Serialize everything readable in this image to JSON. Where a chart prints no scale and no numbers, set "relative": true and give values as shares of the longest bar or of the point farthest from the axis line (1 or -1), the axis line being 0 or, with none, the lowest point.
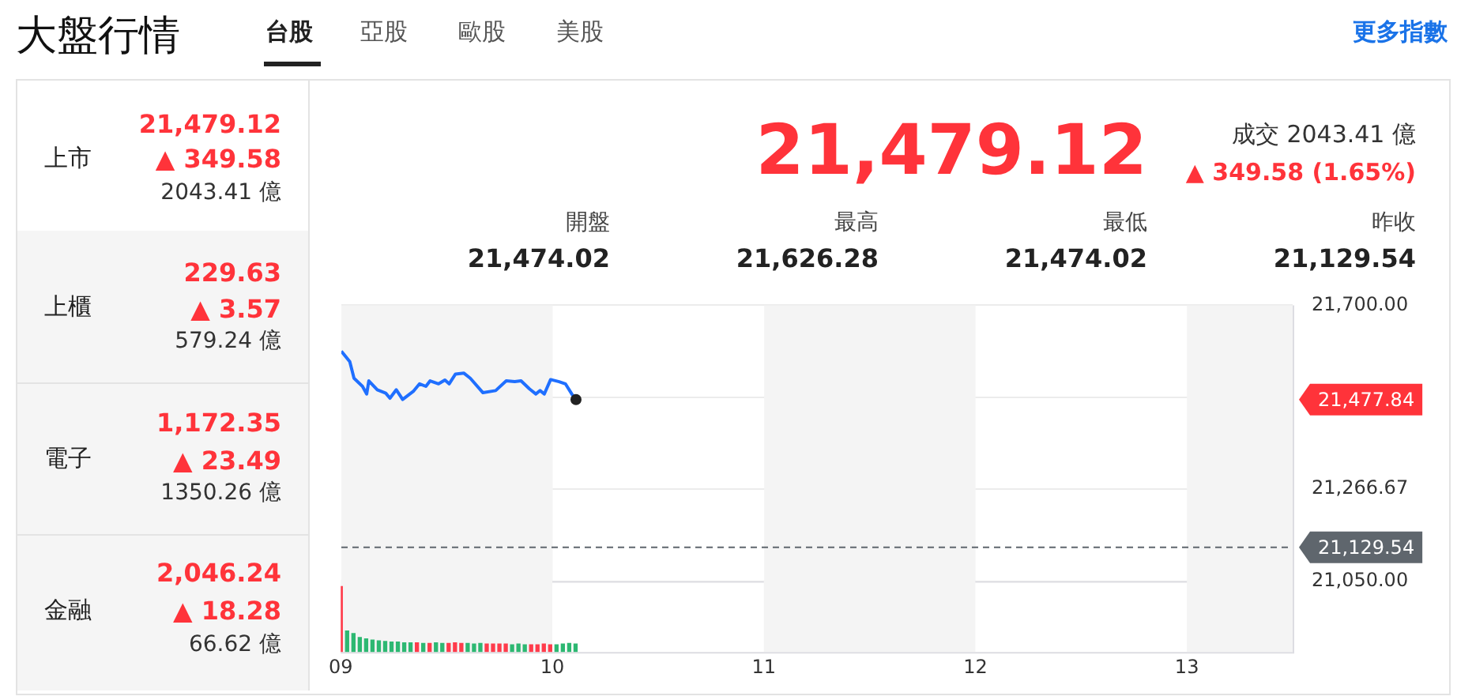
{
  "chart_data": [
    {
      "type": "other",
      "title": "大盤行情",
      "annotations": [
        "台股",
        "亞股",
        "歐股",
        "美股",
        "更多指數",
        "上市",
        "21,479.12",
        "▲ 349.58",
        "2043.41 億",
        "上櫃",
        "229.63",
        "▲ 3.57",
        "579.24 億",
        "電子",
        "1,172.35",
        "▲ 23.49",
        "1350.26 億",
        "金融",
        "2,046.24",
        "▲ 18.28",
        "66.62 億",
        "21,479.12",
        "成交 2043.41 億",
        "▲ 349.58 (1.65%)",
        "開盤",
        "21,474.02",
        "最高",
        "21,626.28",
        "最低",
        "21,474.02",
        "昨收",
        "21,129.54"
      ]
    },
    {
      "type": "line",
      "legend": false,
      "grid": "y",
      "line_style": "solid",
      "tick_labels": "y",
      "xlim": [
        9,
        13.5
      ],
      "xticks": [
        {
          "value": 9,
          "label": null
        },
        {
          "value": 10,
          "label": null
        },
        {
          "value": 11,
          "label": null
        },
        {
          "value": 12,
          "label": null
        },
        {
          "value": 13,
          "label": null
        }
      ],
      "ylim": [
        21050,
        21700
      ],
      "yticks": [
        {
          "value": 21050,
          "label": "21,050.00"
        },
        {
          "value": 21266.67,
          "label": "21,266.67"
        },
        {
          "value": 21483.33,
          "label": null
        },
        {
          "value": 21700,
          "label": "21,700.00"
        }
      ],
      "series": [
        {
          "type": "line",
          "marker": "none",
          "color": "#1f6fff",
          "x": [
            9.0,
            9.04,
            9.06,
            9.1,
            9.12,
            9.13,
            9.17,
            9.21,
            9.23,
            9.26,
            9.29,
            9.34,
            9.37,
            9.4,
            9.42,
            9.46,
            9.49,
            9.51,
            9.54,
            9.58,
            9.61,
            9.67,
            9.73,
            9.78,
            9.82,
            9.85,
            9.89,
            9.92,
            9.94,
            9.96,
            9.99,
            10.03,
            10.06,
            10.09,
            10.11
          ],
          "values": [
            21592,
            21567,
            21528,
            21509,
            21491,
            21522,
            21501,
            21493,
            21481,
            21501,
            21478,
            21497,
            21515,
            21509,
            21522,
            21515,
            21524,
            21515,
            21538,
            21540,
            21528,
            21494,
            21499,
            21522,
            21520,
            21522,
            21503,
            21491,
            21499,
            21491,
            21525,
            21520,
            21515,
            21491,
            21477.84
          ]
        },
        {
          "type": "scatter",
          "marker": "circle",
          "color": "#222222",
          "x": [
            10.11
          ],
          "values": [
            21477.84
          ]
        }
      ],
      "bands": [
        {
          "axis": "x",
          "from": 9,
          "to": 10,
          "color": "#f4f4f4"
        },
        {
          "axis": "x",
          "from": 11,
          "to": 12,
          "color": "#f4f4f4"
        },
        {
          "axis": "x",
          "from": 13,
          "to": 13.5,
          "color": "#f4f4f4"
        }
      ],
      "ref_lines": [
        {
          "axis": "y",
          "value": 21129.54,
          "label": "21,129.54",
          "color": "#5f666d",
          "line_style": "dashed"
        }
      ],
      "annotations": [
        "21,477.84"
      ]
    },
    {
      "type": "bar",
      "relative": true,
      "legend": false,
      "grid": false,
      "tick_labels": "x",
      "xlim": [
        9,
        13.5
      ],
      "xticks": [
        {
          "value": 9,
          "label": "09"
        },
        {
          "value": 10,
          "label": "10"
        },
        {
          "value": 11,
          "label": "11"
        },
        {
          "value": 12,
          "label": "12"
        },
        {
          "value": 13,
          "label": "13"
        }
      ],
      "series": [
        {
          "type": "bar",
          "x": [
            9.0,
            9.03,
            9.06,
            9.09,
            9.12,
            9.15,
            9.18,
            9.21,
            9.24,
            9.27,
            9.3,
            9.33,
            9.36,
            9.39,
            9.42,
            9.45,
            9.48,
            9.51,
            9.54,
            9.57,
            9.6,
            9.63,
            9.66,
            9.69,
            9.72,
            9.75,
            9.78,
            9.81,
            9.84,
            9.87,
            9.9,
            9.93,
            9.96,
            9.99,
            10.02,
            10.05,
            10.08,
            10.11
          ],
          "values": [
            1.0,
            0.32,
            0.28,
            0.22,
            0.2,
            0.18,
            0.17,
            0.16,
            0.15,
            0.15,
            0.14,
            0.14,
            0.14,
            0.13,
            0.13,
            0.14,
            0.13,
            0.13,
            0.14,
            0.13,
            0.13,
            0.12,
            0.13,
            0.12,
            0.12,
            0.12,
            0.12,
            0.11,
            0.12,
            0.11,
            0.11,
            0.11,
            0.12,
            0.11,
            0.11,
            0.12,
            0.13,
            0.12
          ],
          "colors": [
            "#ff3b4b",
            "#2db872",
            "#2db872",
            "#2db872",
            "#2db872",
            "#2db872",
            "#2db872",
            "#2db872",
            "#2db872",
            "#2db872",
            "#2db872",
            "#2db872",
            "#ff3b4b",
            "#2db872",
            "#ff3b4b",
            "#2db872",
            "#2db872",
            "#ff3b4b",
            "#ff3b4b",
            "#ff3b4b",
            "#2db872",
            "#2db872",
            "#2db872",
            "#ff3b4b",
            "#ff3b4b",
            "#ff3b4b",
            "#ff3b4b",
            "#2db872",
            "#2db872",
            "#2db872",
            "#ff3b4b",
            "#ff3b4b",
            "#ff3b4b",
            "#ff3b4b",
            "#2db872",
            "#2db872",
            "#2db872",
            "#2db872"
          ]
        }
      ],
      "bands": [
        {
          "axis": "x",
          "from": 9,
          "to": 10,
          "color": "#f4f4f4"
        },
        {
          "axis": "x",
          "from": 11,
          "to": 12,
          "color": "#f4f4f4"
        },
        {
          "axis": "x",
          "from": 13,
          "to": 13.5,
          "color": "#f4f4f4"
        }
      ]
    }
  ]
}
